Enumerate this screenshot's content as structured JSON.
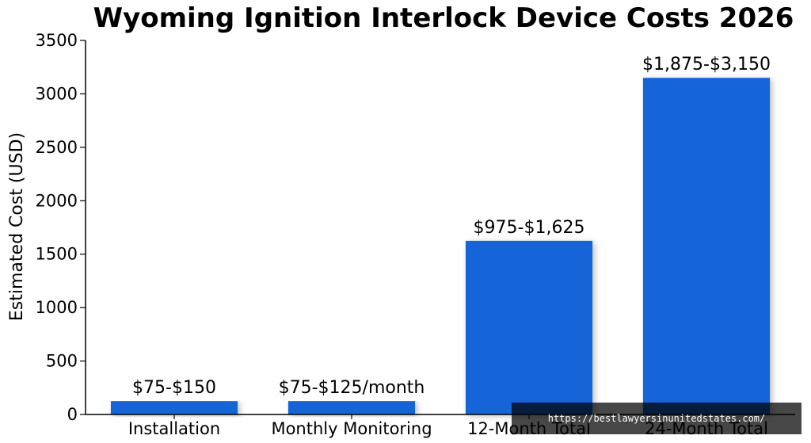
{
  "chart_data": {
    "type": "bar",
    "title": "Wyoming Ignition Interlock Device Costs 2026",
    "xlabel": "",
    "ylabel": "Estimated Cost (USD)",
    "ylim": [
      0,
      3500
    ],
    "yticks": [
      "0",
      "500",
      "1000",
      "1500",
      "2000",
      "2500",
      "3000",
      "3500"
    ],
    "categories": [
      "Installation",
      "Monthly Monitoring",
      "12-Month Total",
      "24-Month Total"
    ],
    "values": [
      125,
      125,
      1625,
      3150
    ],
    "data_labels": [
      "$75-$150",
      "$75-$125/month",
      "$975-$1,625",
      "$1,875-$3,150"
    ],
    "bar_color": "#1565d8",
    "grid": false,
    "legend": false
  },
  "watermark": {
    "text": "https://bestlawyersinunitedstates.com/"
  }
}
